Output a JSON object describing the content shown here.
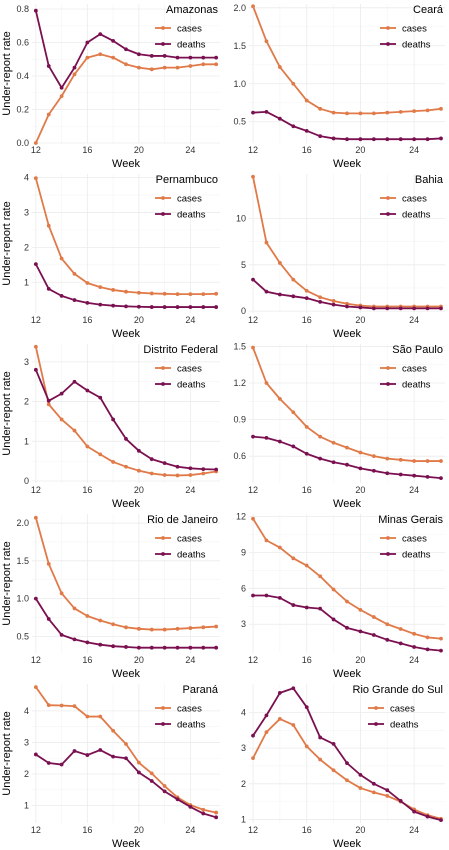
{
  "chart_data": [
    {
      "type": "line",
      "title": "Amazonas",
      "xlabel": "Week",
      "ylabel": "Under-report rate",
      "x": [
        12,
        13,
        14,
        15,
        16,
        17,
        18,
        19,
        20,
        21,
        22,
        23,
        24,
        25,
        26
      ],
      "xticks": [
        12,
        16,
        20,
        24
      ],
      "xlim": [
        11.7,
        26.3
      ],
      "ylim": [
        0,
        0.83
      ],
      "yticks": [
        0.0,
        0.2,
        0.4,
        0.6,
        0.8
      ],
      "ytick_labels": [
        "0.0",
        "0.2",
        "0.4",
        "0.6",
        "0.8"
      ],
      "series": [
        {
          "name": "cases",
          "values": [
            0.0,
            0.17,
            0.28,
            0.41,
            0.51,
            0.53,
            0.51,
            0.47,
            0.45,
            0.44,
            0.45,
            0.45,
            0.46,
            0.47,
            0.47
          ]
        },
        {
          "name": "deaths",
          "values": [
            0.79,
            0.46,
            0.33,
            0.45,
            0.6,
            0.65,
            0.61,
            0.56,
            0.53,
            0.52,
            0.52,
            0.51,
            0.51,
            0.51,
            0.51
          ]
        }
      ]
    },
    {
      "type": "line",
      "title": "Ceará",
      "xlabel": "Week",
      "ylabel": "",
      "x": [
        12,
        13,
        14,
        15,
        16,
        17,
        18,
        19,
        20,
        21,
        22,
        23,
        24,
        25,
        26
      ],
      "xticks": [
        12,
        16,
        20,
        24
      ],
      "xlim": [
        11.7,
        26.3
      ],
      "ylim": [
        0.22,
        2.05
      ],
      "yticks": [
        0.5,
        1.0,
        1.5,
        2.0
      ],
      "ytick_labels": [
        "0.5",
        "1.0",
        "1.5",
        "2.0"
      ],
      "series": [
        {
          "name": "cases",
          "values": [
            2.02,
            1.56,
            1.22,
            1.0,
            0.78,
            0.67,
            0.62,
            0.61,
            0.61,
            0.61,
            0.62,
            0.63,
            0.64,
            0.65,
            0.67
          ]
        },
        {
          "name": "deaths",
          "values": [
            0.62,
            0.63,
            0.54,
            0.44,
            0.38,
            0.31,
            0.28,
            0.27,
            0.27,
            0.27,
            0.27,
            0.27,
            0.27,
            0.27,
            0.28
          ]
        }
      ]
    },
    {
      "type": "line",
      "title": "Pernambuco",
      "xlabel": "Week",
      "ylabel": "Under-report rate",
      "x": [
        12,
        13,
        14,
        15,
        16,
        17,
        18,
        19,
        20,
        21,
        22,
        23,
        24,
        25,
        26
      ],
      "xticks": [
        12,
        16,
        20,
        24
      ],
      "xlim": [
        11.7,
        26.3
      ],
      "ylim": [
        0.12,
        4.1
      ],
      "yticks": [
        1,
        2,
        3,
        4
      ],
      "ytick_labels": [
        "1",
        "2",
        "3",
        "4"
      ],
      "series": [
        {
          "name": "cases",
          "values": [
            3.98,
            2.62,
            1.68,
            1.24,
            0.98,
            0.86,
            0.78,
            0.73,
            0.7,
            0.68,
            0.67,
            0.66,
            0.66,
            0.66,
            0.67
          ]
        },
        {
          "name": "deaths",
          "values": [
            1.52,
            0.81,
            0.61,
            0.49,
            0.41,
            0.36,
            0.33,
            0.31,
            0.3,
            0.29,
            0.29,
            0.29,
            0.29,
            0.29,
            0.29
          ]
        }
      ]
    },
    {
      "type": "line",
      "title": "Bahia",
      "xlabel": "Week",
      "ylabel": "",
      "x": [
        12,
        13,
        14,
        15,
        16,
        17,
        18,
        19,
        20,
        21,
        22,
        23,
        24,
        25,
        26
      ],
      "xticks": [
        12,
        16,
        20,
        24
      ],
      "xlim": [
        11.7,
        26.3
      ],
      "ylim": [
        -0.2,
        14.8
      ],
      "yticks": [
        0,
        5,
        10
      ],
      "ytick_labels": [
        "0",
        "5",
        "10"
      ],
      "series": [
        {
          "name": "cases",
          "values": [
            14.5,
            7.4,
            5.2,
            3.4,
            2.2,
            1.5,
            1.1,
            0.8,
            0.6,
            0.5,
            0.5,
            0.5,
            0.5,
            0.5,
            0.5
          ]
        },
        {
          "name": "deaths",
          "values": [
            3.4,
            2.1,
            1.8,
            1.6,
            1.4,
            1.0,
            0.7,
            0.5,
            0.4,
            0.3,
            0.3,
            0.3,
            0.3,
            0.3,
            0.3
          ]
        }
      ]
    },
    {
      "type": "line",
      "title": "Distrito Federal",
      "xlabel": "Week",
      "ylabel": "Under-report rate",
      "x": [
        12,
        13,
        14,
        15,
        16,
        17,
        18,
        19,
        20,
        21,
        22,
        23,
        24,
        25,
        26
      ],
      "xticks": [
        12,
        16,
        20,
        24
      ],
      "xlim": [
        11.7,
        26.3
      ],
      "ylim": [
        -0.05,
        3.45
      ],
      "yticks": [
        0,
        1,
        2,
        3
      ],
      "ytick_labels": [
        "0",
        "1",
        "2",
        "3"
      ],
      "series": [
        {
          "name": "cases",
          "values": [
            3.38,
            1.93,
            1.55,
            1.27,
            0.87,
            0.67,
            0.48,
            0.36,
            0.26,
            0.19,
            0.15,
            0.14,
            0.15,
            0.19,
            0.24
          ]
        },
        {
          "name": "deaths",
          "values": [
            2.8,
            2.02,
            2.2,
            2.5,
            2.28,
            2.1,
            1.55,
            1.06,
            0.76,
            0.55,
            0.45,
            0.36,
            0.32,
            0.3,
            0.29
          ]
        }
      ]
    },
    {
      "type": "line",
      "title": "São Paulo",
      "xlabel": "Week",
      "ylabel": "",
      "x": [
        12,
        13,
        14,
        15,
        16,
        17,
        18,
        19,
        20,
        21,
        22,
        23,
        24,
        25,
        26
      ],
      "xticks": [
        12,
        16,
        20,
        24
      ],
      "xlim": [
        11.7,
        26.3
      ],
      "ylim": [
        0.38,
        1.52
      ],
      "yticks": [
        0.6,
        0.9,
        1.2,
        1.5
      ],
      "ytick_labels": [
        "0.6",
        "0.9",
        "1.2",
        "1.5"
      ],
      "series": [
        {
          "name": "cases",
          "values": [
            1.49,
            1.2,
            1.07,
            0.96,
            0.84,
            0.76,
            0.71,
            0.67,
            0.63,
            0.6,
            0.58,
            0.57,
            0.56,
            0.56,
            0.56
          ]
        },
        {
          "name": "deaths",
          "values": [
            0.76,
            0.75,
            0.72,
            0.68,
            0.62,
            0.58,
            0.55,
            0.53,
            0.5,
            0.48,
            0.46,
            0.45,
            0.44,
            0.43,
            0.42
          ]
        }
      ]
    },
    {
      "type": "line",
      "title": "Rio de Janeiro",
      "xlabel": "Week",
      "ylabel": "Under-report rate",
      "x": [
        12,
        13,
        14,
        15,
        16,
        17,
        18,
        19,
        20,
        21,
        22,
        23,
        24,
        25,
        26
      ],
      "xticks": [
        12,
        16,
        20,
        24
      ],
      "xlim": [
        11.7,
        26.3
      ],
      "ylim": [
        0.28,
        2.12
      ],
      "yticks": [
        0.5,
        1.0,
        1.5,
        2.0
      ],
      "ytick_labels": [
        "0.5",
        "1.0",
        "1.5",
        "2.0"
      ],
      "series": [
        {
          "name": "cases",
          "values": [
            2.07,
            1.46,
            1.07,
            0.87,
            0.77,
            0.71,
            0.66,
            0.62,
            0.6,
            0.59,
            0.59,
            0.6,
            0.61,
            0.62,
            0.63
          ]
        },
        {
          "name": "deaths",
          "values": [
            1.0,
            0.73,
            0.52,
            0.46,
            0.42,
            0.39,
            0.37,
            0.36,
            0.35,
            0.35,
            0.35,
            0.35,
            0.35,
            0.35,
            0.35
          ]
        }
      ]
    },
    {
      "type": "line",
      "title": "Minas Gerais",
      "xlabel": "Week",
      "ylabel": "",
      "x": [
        12,
        13,
        14,
        15,
        16,
        17,
        18,
        19,
        20,
        21,
        22,
        23,
        24,
        25,
        26
      ],
      "xticks": [
        12,
        16,
        20,
        24
      ],
      "xlim": [
        11.7,
        26.3
      ],
      "ylim": [
        0.6,
        12.2
      ],
      "yticks": [
        3,
        6,
        9,
        12
      ],
      "ytick_labels": [
        "3",
        "6",
        "9",
        "12"
      ],
      "series": [
        {
          "name": "cases",
          "values": [
            11.8,
            10.0,
            9.4,
            8.5,
            7.9,
            7.0,
            5.9,
            4.9,
            4.2,
            3.6,
            3.0,
            2.6,
            2.2,
            1.9,
            1.8
          ]
        },
        {
          "name": "deaths",
          "values": [
            5.4,
            5.4,
            5.2,
            4.6,
            4.4,
            4.3,
            3.4,
            2.7,
            2.4,
            2.1,
            1.7,
            1.4,
            1.1,
            0.9,
            0.8
          ]
        }
      ]
    },
    {
      "type": "line",
      "title": "Paraná",
      "xlabel": "Week",
      "ylabel": "Under-report rate",
      "x": [
        12,
        13,
        14,
        15,
        16,
        17,
        18,
        19,
        20,
        21,
        22,
        23,
        24,
        25,
        26
      ],
      "xticks": [
        12,
        16,
        20,
        24
      ],
      "xlim": [
        11.7,
        26.3
      ],
      "ylim": [
        0.45,
        4.85
      ],
      "yticks": [
        1,
        2,
        3,
        4
      ],
      "ytick_labels": [
        "1",
        "2",
        "3",
        "4"
      ],
      "series": [
        {
          "name": "cases",
          "values": [
            4.75,
            4.18,
            4.17,
            4.15,
            3.82,
            3.82,
            3.37,
            2.95,
            2.36,
            2.02,
            1.62,
            1.26,
            1.02,
            0.87,
            0.78
          ]
        },
        {
          "name": "deaths",
          "values": [
            2.62,
            2.35,
            2.3,
            2.73,
            2.6,
            2.76,
            2.55,
            2.5,
            2.05,
            1.78,
            1.45,
            1.2,
            0.96,
            0.75,
            0.63
          ]
        }
      ]
    },
    {
      "type": "line",
      "title": "Rio Grande do Sul",
      "xlabel": "Week",
      "ylabel": "",
      "x": [
        12,
        13,
        14,
        15,
        16,
        17,
        18,
        19,
        20,
        21,
        22,
        23,
        24,
        25,
        26
      ],
      "xticks": [
        12,
        16,
        20,
        24
      ],
      "xlim": [
        11.7,
        26.3
      ],
      "ylim": [
        0.9,
        4.8
      ],
      "yticks": [
        1,
        2,
        3,
        4
      ],
      "ytick_labels": [
        "1",
        "2",
        "3",
        "4"
      ],
      "series": [
        {
          "name": "cases",
          "values": [
            2.72,
            3.45,
            3.82,
            3.65,
            3.05,
            2.68,
            2.38,
            2.1,
            1.88,
            1.76,
            1.66,
            1.5,
            1.28,
            1.12,
            1.02
          ]
        },
        {
          "name": "deaths",
          "values": [
            3.35,
            3.92,
            4.55,
            4.68,
            4.15,
            3.3,
            3.12,
            2.58,
            2.25,
            2.0,
            1.82,
            1.52,
            1.22,
            1.08,
            0.98
          ]
        }
      ]
    }
  ],
  "colors": {
    "cases": "#e07a48",
    "deaths": "#7a1050",
    "grid": "#ebebeb"
  }
}
